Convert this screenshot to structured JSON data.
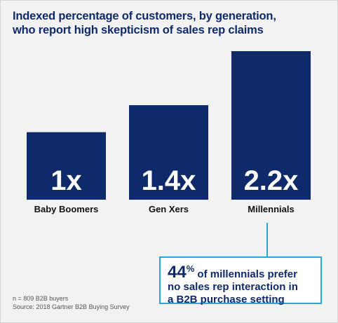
{
  "title_line1": "Indexed percentage of customers, by generation,",
  "title_line2": "who report high skepticism of sales rep claims",
  "chart_data": {
    "type": "bar",
    "categories": [
      "Baby Boomers",
      "Gen Xers",
      "Millennials"
    ],
    "values": [
      1,
      1.4,
      2.2
    ],
    "value_labels": [
      "1x",
      "1.4x",
      "2.2x"
    ],
    "title": "Indexed percentage of customers, by generation, who report high skepticism of sales rep claims",
    "xlabel": "",
    "ylabel": "",
    "ylim": [
      0,
      2.2
    ],
    "grid": false,
    "bar_color": "#0f2a6b",
    "label_color": "#ffffff"
  },
  "callout": {
    "number": "44",
    "percent_sign": "%",
    "line1_rest": " of millennials prefer",
    "line2": "no sales rep interaction in",
    "line3": "a B2B purchase setting",
    "border_color": "#2aa7d8"
  },
  "footnote": {
    "line1": "n = 809 B2B buyers",
    "line2": "Source: 2018 Gartner B2B Buying Survey"
  }
}
